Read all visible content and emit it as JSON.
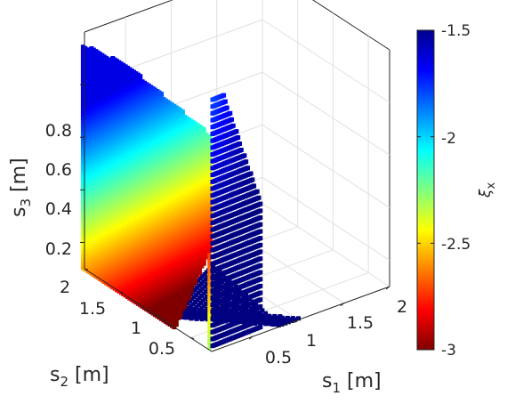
{
  "chart_data": {
    "type": "scatter3d",
    "title": "",
    "xlabel": "s_1 [m]",
    "ylabel": "s_2 [m]",
    "zlabel": "s_3 [m]",
    "axis_labels": {
      "x": {
        "base": "s",
        "sub": "1",
        "unit": "[m]"
      },
      "y": {
        "base": "s",
        "sub": "2",
        "unit": "[m]"
      },
      "z": {
        "base": "s",
        "sub": "3",
        "unit": "[m]"
      }
    },
    "x_ticks": [
      "0.5",
      "1",
      "1.5",
      "2"
    ],
    "y_ticks": [
      "0.5",
      "1",
      "1.5",
      "2"
    ],
    "z_ticks": [
      "0.2",
      "0.4",
      "0.6",
      "0.8"
    ],
    "x_tick_values": [
      0.5,
      1,
      1.5,
      2
    ],
    "y_tick_values": [
      0.5,
      1,
      1.5,
      2
    ],
    "z_tick_values": [
      0.2,
      0.4,
      0.6,
      0.8
    ],
    "xlim": [
      0.05,
      2.0
    ],
    "ylim": [
      0.2,
      2.0
    ],
    "zlim": [
      0.1,
      1.0
    ],
    "grid": true,
    "colormap": "jet",
    "colorbar": {
      "label_base": "ξ",
      "label_sub": "x",
      "ticks": [
        "-1.5",
        "-2",
        "-2.5",
        "-3"
      ],
      "tick_values": [
        -1.5,
        -2,
        -2.5,
        -3
      ],
      "range": [
        -3,
        -1.5
      ]
    },
    "regions": [
      {
        "id": "s1-s3-plane",
        "description_value_range": [
          -3,
          -2.8
        ]
      },
      {
        "id": "s2-s3-plane",
        "description_value_range": [
          -3,
          -1.5
        ]
      },
      {
        "id": "s1-s2-floor",
        "description_value_range": [
          -3,
          -3
        ]
      }
    ]
  },
  "colors": {
    "axis": "#262626",
    "grid": "#e0e0e0",
    "background": "#ffffff"
  }
}
